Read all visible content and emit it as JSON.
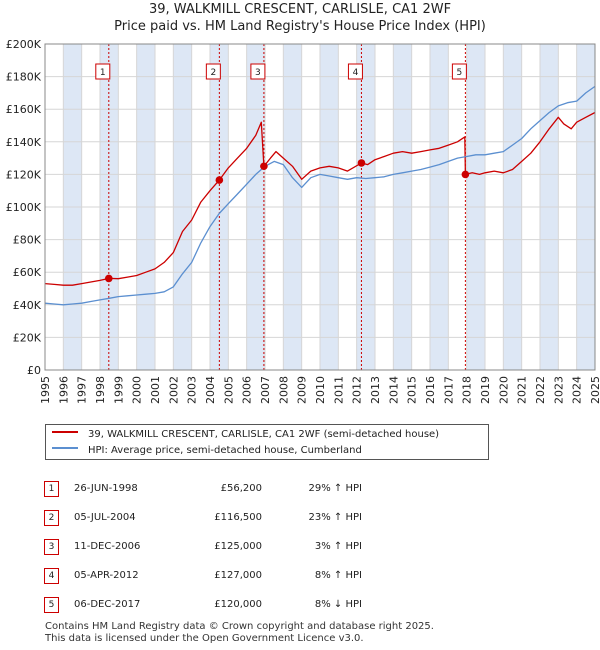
{
  "title_line1": "39, WALKMILL CRESCENT, CARLISLE, CA1 2WF",
  "title_line2": "Price paid vs. HM Land Registry's House Price Index (HPI)",
  "colors": {
    "property_line": "#cc0000",
    "hpi_line": "#5b8fd0",
    "shade": "#dde7f5",
    "marker": "#cc0000",
    "grid": "#d6d6d6"
  },
  "chart_data": {
    "type": "line",
    "title": "39, WALKMILL CRESCENT, CARLISLE, CA1 2WF — Price paid vs. HM Land Registry's House Price Index (HPI)",
    "xlabel": "",
    "ylabel": "",
    "xlim": [
      1995,
      2025
    ],
    "ylim": [
      0,
      200000
    ],
    "x_ticks": [
      1995,
      1996,
      1997,
      1998,
      1999,
      2000,
      2001,
      2002,
      2003,
      2004,
      2005,
      2006,
      2007,
      2008,
      2009,
      2010,
      2011,
      2012,
      2013,
      2014,
      2015,
      2016,
      2017,
      2018,
      2019,
      2020,
      2021,
      2022,
      2023,
      2024,
      2025
    ],
    "y_ticks": [
      0,
      20000,
      40000,
      60000,
      80000,
      100000,
      120000,
      140000,
      160000,
      180000,
      200000
    ],
    "y_tick_labels": [
      "£0",
      "£20K",
      "£40K",
      "£60K",
      "£80K",
      "£100K",
      "£120K",
      "£140K",
      "£160K",
      "£180K",
      "£200K"
    ],
    "grid": true,
    "series": [
      {
        "name": "39, WALKMILL CRESCENT, CARLISLE, CA1 2WF (semi-detached house)",
        "color": "#cc0000",
        "x": [
          1995.0,
          1995.5,
          1996.0,
          1996.5,
          1997.0,
          1997.5,
          1998.0,
          1998.48,
          1999.0,
          1999.5,
          2000.0,
          2000.5,
          2001.0,
          2001.5,
          2002.0,
          2002.5,
          2003.0,
          2003.5,
          2004.0,
          2004.51,
          2005.0,
          2005.5,
          2006.0,
          2006.5,
          2006.8,
          2006.94,
          2007.3,
          2007.6,
          2008.0,
          2008.5,
          2009.0,
          2009.5,
          2010.0,
          2010.5,
          2011.0,
          2011.5,
          2012.26,
          2012.6,
          2013.0,
          2013.5,
          2014.0,
          2014.5,
          2015.0,
          2015.5,
          2016.0,
          2016.5,
          2017.0,
          2017.5,
          2017.9,
          2017.93,
          2018.3,
          2018.7,
          2019.0,
          2019.5,
          2020.0,
          2020.5,
          2021.0,
          2021.5,
          2022.0,
          2022.5,
          2023.0,
          2023.3,
          2023.7,
          2024.0,
          2024.5,
          2025.0
        ],
        "values": [
          53000,
          52500,
          52000,
          52000,
          53000,
          54000,
          55000,
          56200,
          56000,
          57000,
          58000,
          60000,
          62000,
          66000,
          72000,
          85000,
          92000,
          103000,
          110000,
          116500,
          124000,
          130000,
          136000,
          144000,
          152000,
          125000,
          130000,
          134000,
          130000,
          125000,
          117000,
          122000,
          124000,
          125000,
          124000,
          122000,
          127000,
          126000,
          129000,
          131000,
          133000,
          134000,
          133000,
          134000,
          135000,
          136000,
          138000,
          140000,
          143000,
          120000,
          121000,
          120000,
          121000,
          122000,
          121000,
          123000,
          128000,
          133000,
          140000,
          148000,
          155000,
          151000,
          148000,
          152000,
          155000,
          158000
        ]
      },
      {
        "name": "HPI: Average price, semi-detached house, Cumberland",
        "color": "#5b8fd0",
        "x": [
          1995.0,
          1995.5,
          1996.0,
          1996.5,
          1997.0,
          1997.5,
          1998.0,
          1998.5,
          1999.0,
          1999.5,
          2000.0,
          2000.5,
          2001.0,
          2001.5,
          2002.0,
          2002.5,
          2003.0,
          2003.5,
          2004.0,
          2004.5,
          2005.0,
          2005.5,
          2006.0,
          2006.5,
          2007.0,
          2007.5,
          2008.0,
          2008.5,
          2009.0,
          2009.5,
          2010.0,
          2010.5,
          2011.0,
          2011.5,
          2012.0,
          2012.5,
          2013.0,
          2013.5,
          2014.0,
          2014.5,
          2015.0,
          2015.5,
          2016.0,
          2016.5,
          2017.0,
          2017.5,
          2018.0,
          2018.5,
          2019.0,
          2019.5,
          2020.0,
          2020.5,
          2021.0,
          2021.5,
          2022.0,
          2022.5,
          2023.0,
          2023.5,
          2024.0,
          2024.5,
          2025.0
        ],
        "values": [
          41000,
          40500,
          40000,
          40500,
          41000,
          42000,
          43000,
          44000,
          45000,
          45500,
          46000,
          46500,
          47000,
          48000,
          51000,
          59000,
          66000,
          78000,
          88000,
          96000,
          102000,
          108000,
          114000,
          120000,
          125000,
          128000,
          126000,
          118000,
          112000,
          118000,
          120000,
          119000,
          118000,
          117000,
          118000,
          117500,
          118000,
          118500,
          120000,
          121000,
          122000,
          123000,
          124500,
          126000,
          128000,
          130000,
          131000,
          132000,
          132000,
          133000,
          134000,
          138000,
          142000,
          148000,
          153000,
          158000,
          162000,
          164000,
          165000,
          170000,
          174000
        ]
      }
    ],
    "sales": [
      {
        "label": "1",
        "x": 1998.48,
        "y": 56200
      },
      {
        "label": "2",
        "x": 2004.51,
        "y": 116500
      },
      {
        "label": "3",
        "x": 2006.94,
        "y": 125000
      },
      {
        "label": "4",
        "x": 2012.26,
        "y": 127000
      },
      {
        "label": "5",
        "x": 2017.93,
        "y": 120000
      }
    ],
    "legend_position": "below"
  },
  "legend": {
    "items": [
      {
        "label": "39, WALKMILL CRESCENT, CARLISLE, CA1 2WF (semi-detached house)"
      },
      {
        "label": "HPI: Average price, semi-detached house, Cumberland"
      }
    ]
  },
  "sales_table": [
    {
      "num": "1",
      "date": "26-JUN-1998",
      "price": "£56,200",
      "hpi": "29% ↑ HPI"
    },
    {
      "num": "2",
      "date": "05-JUL-2004",
      "price": "£116,500",
      "hpi": "23% ↑ HPI"
    },
    {
      "num": "3",
      "date": "11-DEC-2006",
      "price": "£125,000",
      "hpi": "3% ↑ HPI"
    },
    {
      "num": "4",
      "date": "05-APR-2012",
      "price": "£127,000",
      "hpi": "8% ↑ HPI"
    },
    {
      "num": "5",
      "date": "06-DEC-2017",
      "price": "£120,000",
      "hpi": "8% ↓ HPI"
    }
  ],
  "footer": {
    "line1": "Contains HM Land Registry data © Crown copyright and database right 2025.",
    "line2": "This data is licensed under the Open Government Licence v3.0."
  }
}
